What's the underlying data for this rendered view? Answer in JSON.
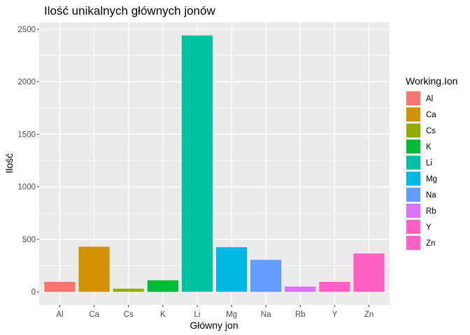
{
  "chart_data": {
    "type": "bar",
    "title": "Ilość unikalnych głównych jonów",
    "xlabel": "Główny jon",
    "ylabel": "Ilość",
    "categories": [
      "Al",
      "Ca",
      "Cs",
      "K",
      "Li",
      "Mg",
      "Na",
      "Rb",
      "Y",
      "Zn"
    ],
    "values": [
      95,
      430,
      30,
      110,
      2440,
      425,
      305,
      50,
      95,
      365
    ],
    "ylim": [
      -125,
      2565
    ],
    "yticks": [
      0,
      500,
      1000,
      1500,
      2000,
      2500
    ],
    "yticks_labels": [
      "0",
      "500",
      "1000",
      "1500",
      "2000",
      "2500"
    ],
    "grid": true,
    "panel_background": "#EBEBEB",
    "legend": {
      "title": "Working.Ion",
      "placement": "right",
      "entries": [
        "Al",
        "Ca",
        "Cs",
        "K",
        "Li",
        "Mg",
        "Na",
        "Rb",
        "Y",
        "Zn"
      ]
    },
    "colors": [
      "#F8766D",
      "#D39200",
      "#93AA00",
      "#00BA38",
      "#00C19F",
      "#00B9E3",
      "#619CFF",
      "#DB72FB",
      "#FF61C3",
      "#FF61C3"
    ]
  }
}
